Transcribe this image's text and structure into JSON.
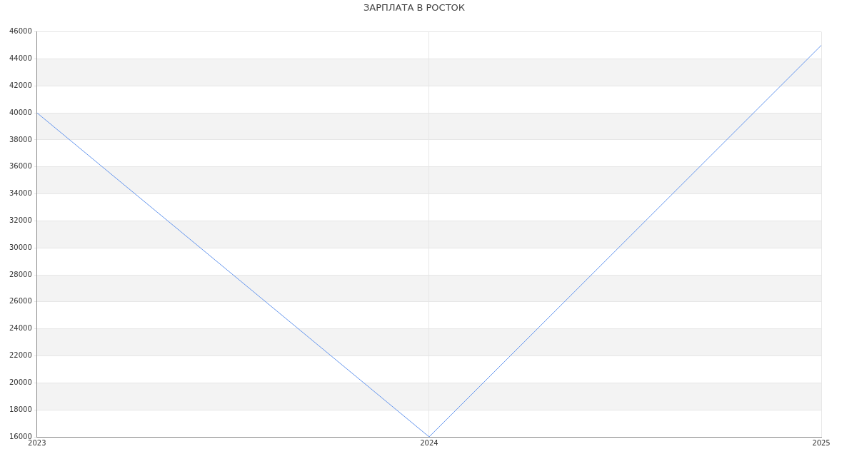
{
  "chart_data": {
    "type": "line",
    "title": "ЗАРПЛАТА В РОСТОК",
    "x": [
      2023,
      2024,
      2025
    ],
    "series": [
      {
        "color": "#6495ed",
        "values": [
          40000,
          16000,
          45000
        ]
      }
    ],
    "xlim": [
      2023,
      2025
    ],
    "xticks": [
      2023,
      2024,
      2025
    ],
    "ylim": [
      16000,
      46000
    ],
    "yticks": [
      16000,
      18000,
      20000,
      22000,
      24000,
      26000,
      28000,
      30000,
      32000,
      34000,
      36000,
      38000,
      40000,
      42000,
      44000,
      46000
    ],
    "grid": true,
    "legend": false,
    "marker": "none",
    "line_style": "solid"
  }
}
